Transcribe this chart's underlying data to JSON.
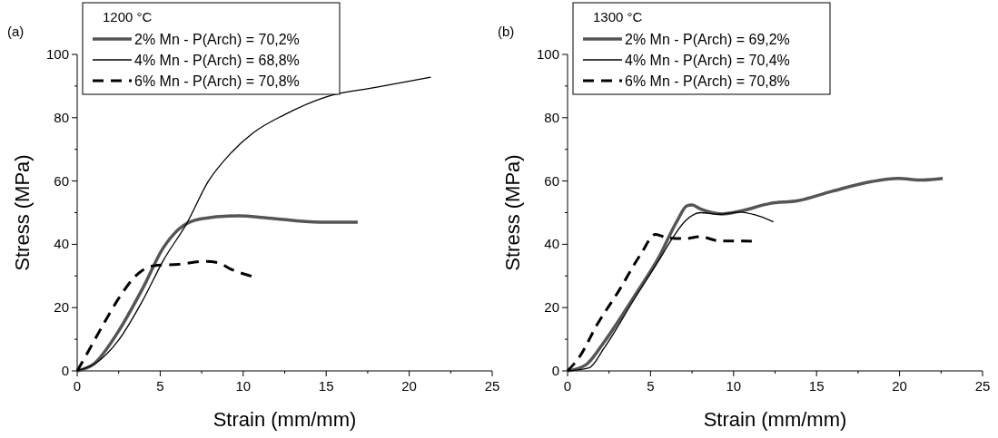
{
  "chart_data": [
    {
      "type": "line",
      "legend_title": "1200 °C",
      "xlabel": "Strain (mm/mm)",
      "ylabel": "Stress (MPa)",
      "annotations": [
        "(a)"
      ],
      "legend": "top left",
      "xlim": [
        0,
        25
      ],
      "ylim": [
        0,
        100
      ],
      "xticks": [
        0,
        {
          "value": 2.5,
          "label": null
        },
        5,
        {
          "value": 7.5,
          "label": null
        },
        10,
        {
          "value": 12.5,
          "label": null
        },
        15,
        {
          "value": 17.5,
          "label": null
        },
        20,
        {
          "value": 22.5,
          "label": null
        },
        25
      ],
      "yticks": [
        0,
        {
          "value": 10,
          "label": null
        },
        20,
        {
          "value": 30,
          "label": null
        },
        40,
        {
          "value": 50,
          "label": null
        },
        60,
        {
          "value": 70,
          "label": null
        },
        80,
        {
          "value": 90,
          "label": null
        },
        100
      ],
      "series": [
        {
          "name": "2% Mn - P(Arch) = 70,2%",
          "color": "#555555",
          "line_style": "solid",
          "x": [
            0,
            1,
            2.45,
            3.9,
            5.2,
            6.1,
            7.4,
            9.7,
            11.5,
            14.6,
            16.9
          ],
          "values": [
            0,
            2.2,
            12.2,
            25.6,
            39,
            44.7,
            48,
            49,
            48.3,
            47,
            47
          ]
        },
        {
          "name": "4% Mn - P(Arch) = 68,8%",
          "color": "#000000",
          "line_style": "solid",
          "x": [
            0,
            1.2,
            2.45,
            3.9,
            5.2,
            6.6,
            7.9,
            9.2,
            10.6,
            12.5,
            15,
            17.9,
            21.3
          ],
          "values": [
            0,
            2.7,
            9.4,
            21.8,
            35,
            46.6,
            59.9,
            68.5,
            75.2,
            81,
            86.6,
            89.5,
            92.8
          ]
        },
        {
          "name": "6% Mn - P(Arch) = 70,8%",
          "color": "#000000",
          "line_style": "dashed",
          "x": [
            0,
            0.6,
            1.5,
            2.6,
            3.5,
            4.6,
            6.1,
            7.7,
            8.5,
            9.2,
            10.5
          ],
          "values": [
            0,
            5.5,
            14,
            23.7,
            29.9,
            33.2,
            33.7,
            34.6,
            34.2,
            32.3,
            29.9
          ]
        }
      ]
    },
    {
      "type": "line",
      "legend_title": "1300 °C",
      "xlabel": "Strain (mm/mm)",
      "ylabel": "Stress (MPa)",
      "annotations": [
        "(b)"
      ],
      "legend": "top left",
      "xlim": [
        0,
        25
      ],
      "ylim": [
        0,
        100
      ],
      "xticks": [
        0,
        {
          "value": 2.5,
          "label": null
        },
        5,
        {
          "value": 7.5,
          "label": null
        },
        10,
        {
          "value": 12.5,
          "label": null
        },
        15,
        {
          "value": 17.5,
          "label": null
        },
        20,
        {
          "value": 22.5,
          "label": null
        },
        25
      ],
      "yticks": [
        0,
        {
          "value": 10,
          "label": null
        },
        20,
        {
          "value": 30,
          "label": null
        },
        40,
        {
          "value": 50,
          "label": null
        },
        60,
        {
          "value": 70,
          "label": null
        },
        80,
        {
          "value": 90,
          "label": null
        },
        100
      ],
      "series": [
        {
          "name": "2% Mn - P(Arch) = 69,2%",
          "color": "#555555",
          "line_style": "solid",
          "x": [
            0,
            1.1,
            2.2,
            4,
            5.5,
            6.6,
            7.2,
            7.5,
            8,
            9.3,
            10.4,
            12.2,
            13.9,
            15.9,
            18.3,
            19.9,
            21.4,
            22.6
          ],
          "values": [
            0,
            1.9,
            9.1,
            23.4,
            35.9,
            47.4,
            52.2,
            52.4,
            51.2,
            49.6,
            50.5,
            52.9,
            53.8,
            56.7,
            59.8,
            60.8,
            60.3,
            60.8
          ]
        },
        {
          "name": "4% Mn - P(Arch) = 70,4%",
          "color": "#000000",
          "line_style": "solid",
          "x": [
            0,
            1.3,
            2.2,
            4,
            5.5,
            6.4,
            7.1,
            8,
            9.1,
            10.4,
            11.3,
            12.4
          ],
          "values": [
            0,
            1,
            7.2,
            22.5,
            34.9,
            42.6,
            47.4,
            50,
            49.5,
            50.2,
            49.3,
            47.1
          ]
        },
        {
          "name": "6% Mn - P(Arch) = 70,8%",
          "color": "#000000",
          "line_style": "dashed",
          "x": [
            0,
            0.7,
            1.8,
            3.1,
            4.4,
            5.3,
            6,
            7.1,
            8,
            9.1,
            11.1
          ],
          "values": [
            0,
            4.3,
            14.8,
            25.4,
            36.8,
            43.1,
            42.1,
            41.8,
            42.4,
            41.1,
            41
          ]
        }
      ]
    }
  ]
}
